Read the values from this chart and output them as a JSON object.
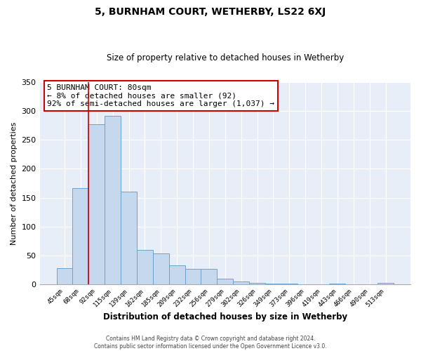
{
  "title": "5, BURNHAM COURT, WETHERBY, LS22 6XJ",
  "subtitle": "Size of property relative to detached houses in Wetherby",
  "xlabel": "Distribution of detached houses by size in Wetherby",
  "ylabel": "Number of detached properties",
  "footer_lines": [
    "Contains HM Land Registry data © Crown copyright and database right 2024.",
    "Contains public sector information licensed under the Open Government Licence v3.0."
  ],
  "bar_labels": [
    "45sqm",
    "68sqm",
    "92sqm",
    "115sqm",
    "139sqm",
    "162sqm",
    "185sqm",
    "209sqm",
    "232sqm",
    "256sqm",
    "279sqm",
    "302sqm",
    "326sqm",
    "349sqm",
    "373sqm",
    "396sqm",
    "419sqm",
    "443sqm",
    "466sqm",
    "490sqm",
    "513sqm"
  ],
  "bar_values": [
    28,
    167,
    277,
    292,
    160,
    60,
    54,
    33,
    27,
    27,
    10,
    5,
    2,
    1,
    1,
    0,
    0,
    1,
    0,
    0,
    2
  ],
  "bar_color": "#c5d8ee",
  "bar_edgecolor": "#6ba3cc",
  "ylim": [
    0,
    350
  ],
  "yticks": [
    0,
    50,
    100,
    150,
    200,
    250,
    300,
    350
  ],
  "annotation_line1": "5 BURNHAM COURT: 80sqm",
  "annotation_line2": "← 8% of detached houses are smaller (92)",
  "annotation_line3": "92% of semi-detached houses are larger (1,037) →",
  "vline_x_index": 1.5,
  "bg_color": "#ffffff",
  "plot_bg_color": "#e8eef8",
  "grid_color": "#ffffff"
}
